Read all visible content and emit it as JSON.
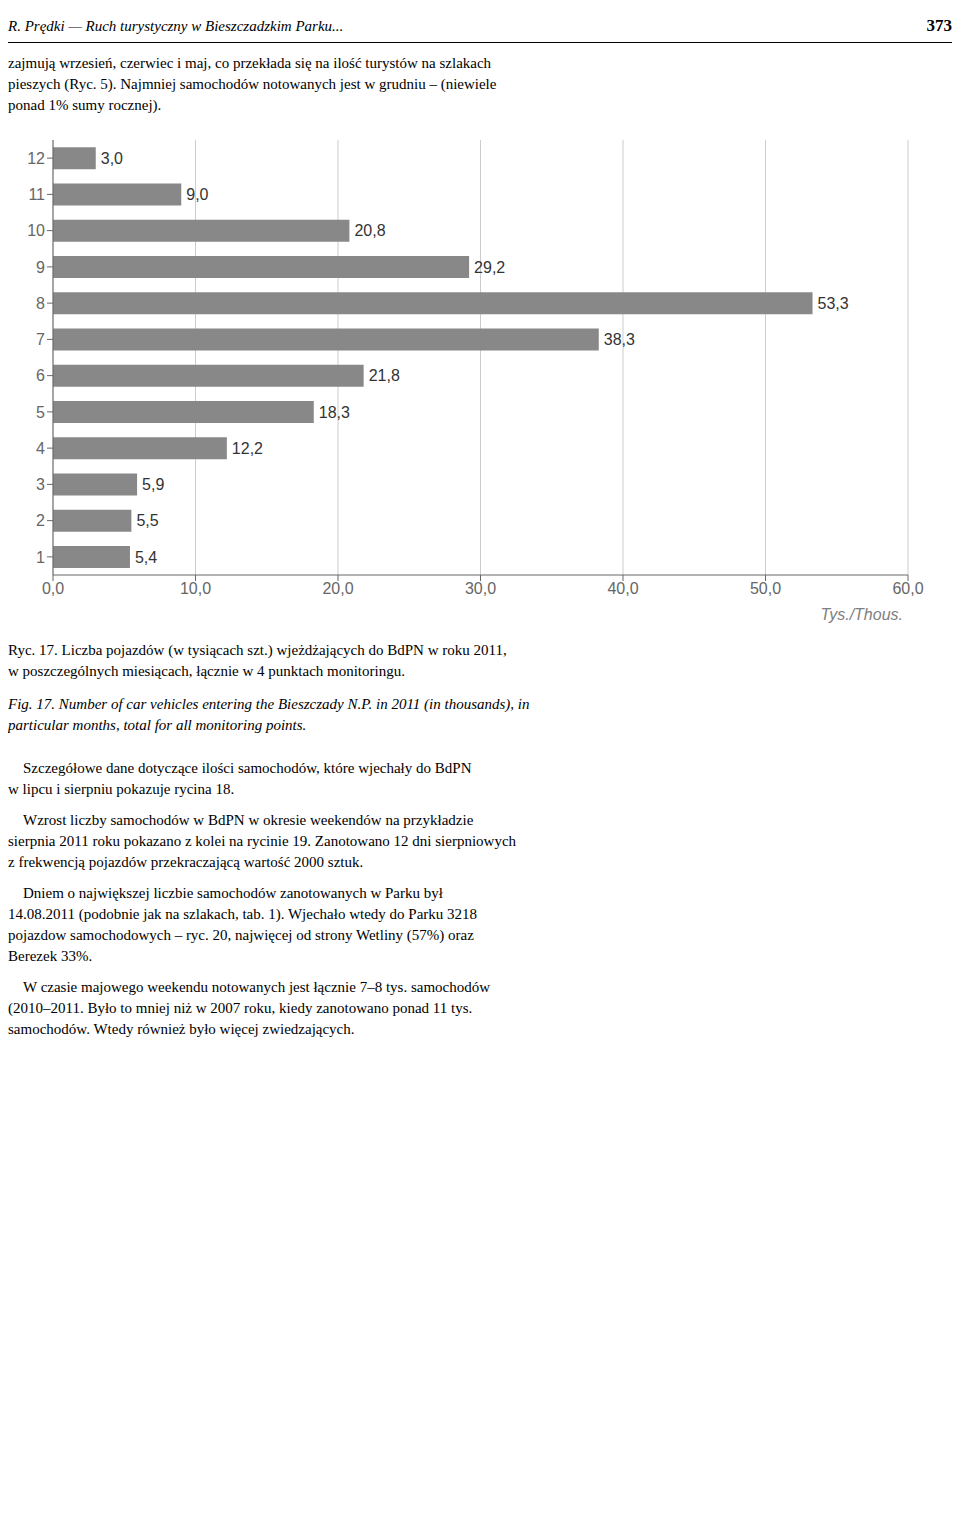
{
  "header": [
    "R. Prędki — Ruch turystyczny w Bieszczadzkim Parku...",
    "373"
  ],
  "paragraphs_before": [
    "zajmują wrzesień, czerwiec i maj, co przekłada się na ilość turystów na szlakach\npieszych (Ryc. 5). Najmniej samochodów notowanych jest w grudniu – (niewiele\nponad 1% sumy rocznej)."
  ],
  "paragraphs_after": [
    "    Szczegółowe dane dotyczące ilości samochodów, które wjechały do BdPN\nw lipcu i sierpniu pokazuje rycina 18.",
    "    Wzrost liczby samochodów w BdPN w okresie weekendów na przykładzie\nsierpnia 2011 roku pokazano z kolei na rycinie 19. Zanotowano 12 dni sierpniowych\nz frekwencją pojazdów przekraczającą wartość 2000 sztuk.",
    "    Dniem o największej liczbie samochodów zanotowanych w Parku był\n14.08.2011 (podobnie jak na szlakach, tab. 1). Wjechało wtedy do Parku 3218\npojazdow samochodowych – ryc. 20, najwięcej od strony Wetliny (57%) oraz\nBerezek 33%.",
    "    W czasie majowego weekendu notowanych jest łącznie 7–8 tys. samochodów\n(2010–2011. Było to mniej niż w 2007 roku, kiedy zanotowano ponad 11 tys.\nsamochodów. Wtedy również było więcej zwiedzających."
  ],
  "chart_data": {
    "type": "bar",
    "orientation": "horizontal",
    "title": "Ryc. 17. Liczba pojazdów (w tysiącach szt.) wjeżdżających do BdPN w roku 2011,\nw poszczególnych miesiącach, łącznie w 4 punktach monitoringu.",
    "subtitle": "Fig. 17. Number of car vehicles entering the Bieszczady N.P. in 2011 (in thousands), in\nparticular months, total for all monitoring points.",
    "annotations": [
      "Tys./Thous."
    ],
    "categories": [
      "1",
      "2",
      "3",
      "4",
      "5",
      "6",
      "7",
      "8",
      "9",
      "10",
      "11",
      "12"
    ],
    "values": [
      5.4,
      5.5,
      5.9,
      12.2,
      18.3,
      21.8,
      38.3,
      53.3,
      29.2,
      20.8,
      9.0,
      3.0
    ],
    "value_labels": [
      "5,4",
      "5,5",
      "5,9",
      "12,2",
      "18,3",
      "21,8",
      "38,3",
      "53,3",
      "29,2",
      "20,8",
      "9,0",
      "3,0"
    ],
    "data_labels": true,
    "color": "#888888",
    "xlim": [
      0,
      60
    ],
    "xticks": [
      {
        "value": 0,
        "label": "0,0"
      },
      {
        "value": 10,
        "label": "10,0"
      },
      {
        "value": 20,
        "label": "20,0"
      },
      {
        "value": 30,
        "label": "30,0"
      },
      {
        "value": 40,
        "label": "40,0"
      },
      {
        "value": 50,
        "label": "50,0"
      },
      {
        "value": 60,
        "label": "60,0"
      }
    ],
    "grid": true
  }
}
